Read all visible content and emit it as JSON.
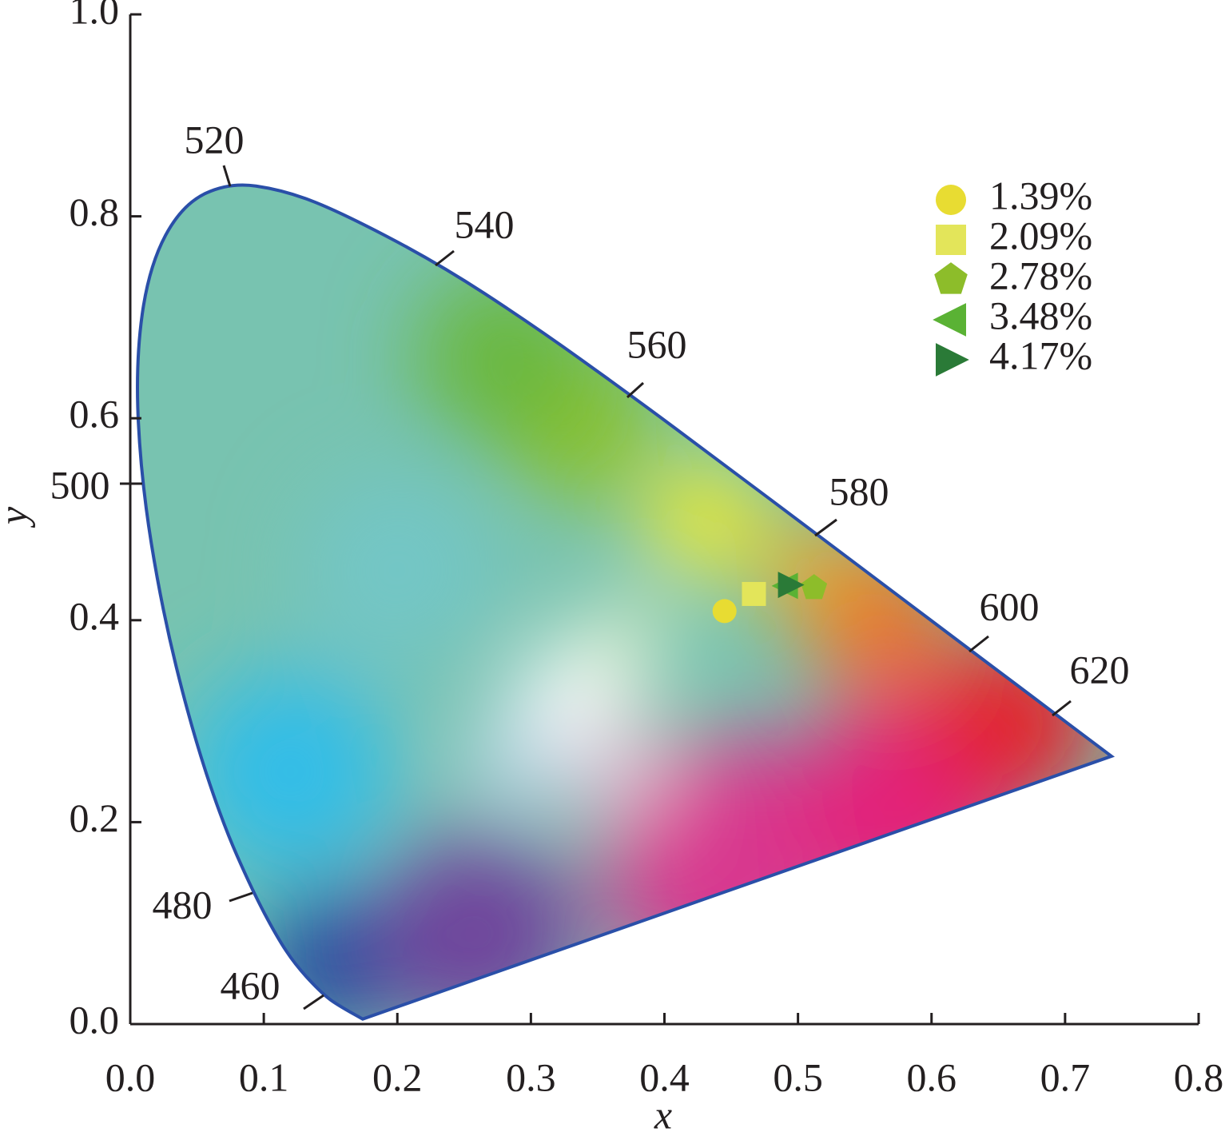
{
  "chart_data": {
    "type": "scatter",
    "x_label": "x",
    "y_label": "y",
    "xlim": [
      0,
      0.8
    ],
    "ylim": [
      0,
      1
    ],
    "xticks": [
      {
        "value": 0,
        "label": "0.0"
      },
      0.1,
      0.2,
      0.3,
      0.4,
      0.5,
      0.6,
      0.7,
      0.8
    ],
    "yticks": [
      {
        "value": 0,
        "label": "0.0"
      },
      0.2,
      0.4,
      0.6,
      0.8,
      {
        "value": 1,
        "label": "1.0"
      }
    ],
    "wavelength_labels": [
      "460",
      "480",
      "500",
      "520",
      "540",
      "560",
      "580",
      "600",
      "620"
    ],
    "legend": "upper right",
    "series": [
      {
        "name": "1.39%",
        "color": "#e8dc32",
        "marker": "circle",
        "x": [
          0.445
        ],
        "values": [
          0.409
        ]
      },
      {
        "name": "2.09%",
        "color": "#e3e55a",
        "marker": "square",
        "x": [
          0.467
        ],
        "values": [
          0.426
        ]
      },
      {
        "name": "2.78%",
        "color": "#8dbd2a",
        "marker": "pentagon",
        "x": [
          0.512
        ],
        "values": [
          0.432
        ]
      },
      {
        "name": "3.48%",
        "color": "#5ab234",
        "marker": "triangle-left",
        "x": [
          0.491
        ],
        "values": [
          0.434
        ]
      },
      {
        "name": "4.17%",
        "color": "#2a7a37",
        "marker": "triangle-right",
        "x": [
          0.494
        ],
        "values": [
          0.435
        ]
      }
    ]
  }
}
